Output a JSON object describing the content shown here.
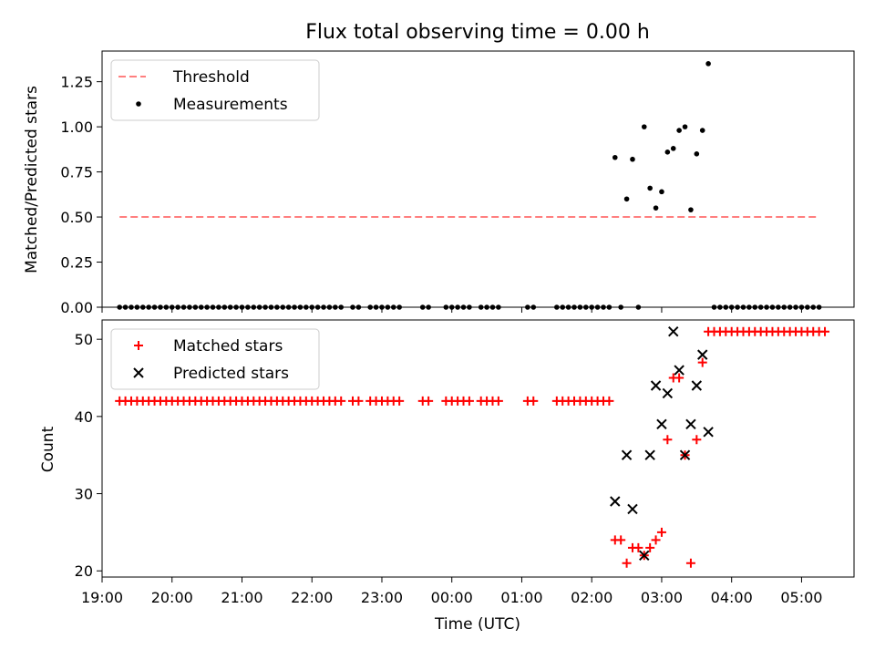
{
  "title": "Flux total observing time = 0.00 h",
  "colors": {
    "threshold": "#ff7f7f",
    "measurement": "#000000",
    "matched": "#ff0000",
    "predicted": "#000000"
  },
  "chart_data": [
    {
      "type": "scatter",
      "panel": "top",
      "ylabel": "Matched/Predicted stars",
      "ylim": [
        0,
        1.42
      ],
      "yticks": [
        0.0,
        0.25,
        0.5,
        0.75,
        1.0,
        1.25
      ],
      "ytick_labels": [
        "0.00",
        "0.25",
        "0.50",
        "0.75",
        "1.00",
        "1.25"
      ],
      "xlim": [
        "19:00",
        "05:45"
      ],
      "legend": {
        "placement": "top-left",
        "entries": [
          "Threshold",
          "Measurements"
        ]
      },
      "series": [
        {
          "name": "Threshold",
          "type": "line",
          "style": "dashed",
          "x": [
            "19:15",
            "05:15"
          ],
          "y": [
            0.5,
            0.5
          ]
        },
        {
          "name": "Measurements",
          "type": "scatter",
          "points": [
            [
              "19:15",
              0
            ],
            [
              "19:20",
              0
            ],
            [
              "19:25",
              0
            ],
            [
              "19:30",
              0
            ],
            [
              "19:35",
              0
            ],
            [
              "19:40",
              0
            ],
            [
              "19:45",
              0
            ],
            [
              "19:50",
              0
            ],
            [
              "19:55",
              0
            ],
            [
              "20:00",
              0
            ],
            [
              "20:05",
              0
            ],
            [
              "20:10",
              0
            ],
            [
              "20:15",
              0
            ],
            [
              "20:20",
              0
            ],
            [
              "20:25",
              0
            ],
            [
              "20:30",
              0
            ],
            [
              "20:35",
              0
            ],
            [
              "20:40",
              0
            ],
            [
              "20:45",
              0
            ],
            [
              "20:50",
              0
            ],
            [
              "20:55",
              0
            ],
            [
              "21:00",
              0
            ],
            [
              "21:05",
              0
            ],
            [
              "21:10",
              0
            ],
            [
              "21:15",
              0
            ],
            [
              "21:20",
              0
            ],
            [
              "21:25",
              0
            ],
            [
              "21:30",
              0
            ],
            [
              "21:35",
              0
            ],
            [
              "21:40",
              0
            ],
            [
              "21:45",
              0
            ],
            [
              "21:50",
              0
            ],
            [
              "21:55",
              0
            ],
            [
              "22:00",
              0
            ],
            [
              "22:05",
              0
            ],
            [
              "22:10",
              0
            ],
            [
              "22:15",
              0
            ],
            [
              "22:20",
              0
            ],
            [
              "22:25",
              0
            ],
            [
              "22:35",
              0
            ],
            [
              "22:40",
              0
            ],
            [
              "22:50",
              0
            ],
            [
              "22:55",
              0
            ],
            [
              "23:00",
              0
            ],
            [
              "23:05",
              0
            ],
            [
              "23:10",
              0
            ],
            [
              "23:15",
              0
            ],
            [
              "23:35",
              0
            ],
            [
              "23:40",
              0
            ],
            [
              "23:55",
              0
            ],
            [
              "00:00",
              0
            ],
            [
              "00:05",
              0
            ],
            [
              "00:10",
              0
            ],
            [
              "00:15",
              0
            ],
            [
              "00:25",
              0
            ],
            [
              "00:30",
              0
            ],
            [
              "00:35",
              0
            ],
            [
              "00:40",
              0
            ],
            [
              "01:05",
              0
            ],
            [
              "01:10",
              0
            ],
            [
              "01:30",
              0
            ],
            [
              "01:35",
              0
            ],
            [
              "01:40",
              0
            ],
            [
              "01:45",
              0
            ],
            [
              "01:50",
              0
            ],
            [
              "01:55",
              0
            ],
            [
              "02:00",
              0
            ],
            [
              "02:05",
              0
            ],
            [
              "02:10",
              0
            ],
            [
              "02:15",
              0
            ],
            [
              "02:25",
              0
            ],
            [
              "02:40",
              0
            ],
            [
              "02:20",
              0.83
            ],
            [
              "02:30",
              0.6
            ],
            [
              "02:35",
              0.82
            ],
            [
              "02:45",
              1.0
            ],
            [
              "02:50",
              0.66
            ],
            [
              "02:55",
              0.55
            ],
            [
              "03:00",
              0.64
            ],
            [
              "03:05",
              0.86
            ],
            [
              "03:10",
              0.88
            ],
            [
              "03:15",
              0.98
            ],
            [
              "03:20",
              1.0
            ],
            [
              "03:25",
              0.54
            ],
            [
              "03:30",
              0.85
            ],
            [
              "03:35",
              0.98
            ],
            [
              "03:40",
              1.35
            ],
            [
              "03:45",
              0
            ],
            [
              "03:50",
              0
            ],
            [
              "03:55",
              0
            ],
            [
              "04:00",
              0
            ],
            [
              "04:05",
              0
            ],
            [
              "04:10",
              0
            ],
            [
              "04:15",
              0
            ],
            [
              "04:20",
              0
            ],
            [
              "04:25",
              0
            ],
            [
              "04:30",
              0
            ],
            [
              "04:35",
              0
            ],
            [
              "04:40",
              0
            ],
            [
              "04:45",
              0
            ],
            [
              "04:50",
              0
            ],
            [
              "04:55",
              0
            ],
            [
              "05:00",
              0
            ],
            [
              "05:05",
              0
            ],
            [
              "05:10",
              0
            ],
            [
              "05:15",
              0
            ]
          ]
        }
      ]
    },
    {
      "type": "scatter",
      "panel": "bottom",
      "xlabel": "Time (UTC)",
      "ylabel": "Count",
      "ylim": [
        19.2,
        52.5
      ],
      "yticks": [
        20,
        30,
        40,
        50
      ],
      "ytick_labels": [
        "20",
        "30",
        "40",
        "50"
      ],
      "xlim": [
        "19:00",
        "05:45"
      ],
      "xticks": [
        "19:00",
        "20:00",
        "21:00",
        "22:00",
        "23:00",
        "00:00",
        "01:00",
        "02:00",
        "03:00",
        "04:00",
        "05:00"
      ],
      "legend": {
        "placement": "top-left",
        "entries": [
          "Matched stars",
          "Predicted stars"
        ]
      },
      "series": [
        {
          "name": "Matched stars",
          "marker": "+",
          "points": [
            [
              "19:15",
              42
            ],
            [
              "19:20",
              42
            ],
            [
              "19:25",
              42
            ],
            [
              "19:30",
              42
            ],
            [
              "19:35",
              42
            ],
            [
              "19:40",
              42
            ],
            [
              "19:45",
              42
            ],
            [
              "19:50",
              42
            ],
            [
              "19:55",
              42
            ],
            [
              "20:00",
              42
            ],
            [
              "20:05",
              42
            ],
            [
              "20:10",
              42
            ],
            [
              "20:15",
              42
            ],
            [
              "20:20",
              42
            ],
            [
              "20:25",
              42
            ],
            [
              "20:30",
              42
            ],
            [
              "20:35",
              42
            ],
            [
              "20:40",
              42
            ],
            [
              "20:45",
              42
            ],
            [
              "20:50",
              42
            ],
            [
              "20:55",
              42
            ],
            [
              "21:00",
              42
            ],
            [
              "21:05",
              42
            ],
            [
              "21:10",
              42
            ],
            [
              "21:15",
              42
            ],
            [
              "21:20",
              42
            ],
            [
              "21:25",
              42
            ],
            [
              "21:30",
              42
            ],
            [
              "21:35",
              42
            ],
            [
              "21:40",
              42
            ],
            [
              "21:45",
              42
            ],
            [
              "21:50",
              42
            ],
            [
              "21:55",
              42
            ],
            [
              "22:00",
              42
            ],
            [
              "22:05",
              42
            ],
            [
              "22:10",
              42
            ],
            [
              "22:15",
              42
            ],
            [
              "22:20",
              42
            ],
            [
              "22:25",
              42
            ],
            [
              "22:35",
              42
            ],
            [
              "22:40",
              42
            ],
            [
              "22:50",
              42
            ],
            [
              "22:55",
              42
            ],
            [
              "23:00",
              42
            ],
            [
              "23:05",
              42
            ],
            [
              "23:10",
              42
            ],
            [
              "23:15",
              42
            ],
            [
              "23:35",
              42
            ],
            [
              "23:40",
              42
            ],
            [
              "23:55",
              42
            ],
            [
              "00:00",
              42
            ],
            [
              "00:05",
              42
            ],
            [
              "00:10",
              42
            ],
            [
              "00:15",
              42
            ],
            [
              "00:25",
              42
            ],
            [
              "00:30",
              42
            ],
            [
              "00:35",
              42
            ],
            [
              "00:40",
              42
            ],
            [
              "01:05",
              42
            ],
            [
              "01:10",
              42
            ],
            [
              "01:30",
              42
            ],
            [
              "01:35",
              42
            ],
            [
              "01:40",
              42
            ],
            [
              "01:45",
              42
            ],
            [
              "01:50",
              42
            ],
            [
              "01:55",
              42
            ],
            [
              "02:00",
              42
            ],
            [
              "02:05",
              42
            ],
            [
              "02:10",
              42
            ],
            [
              "02:15",
              42
            ],
            [
              "02:20",
              24
            ],
            [
              "02:25",
              24
            ],
            [
              "02:30",
              21
            ],
            [
              "02:35",
              23
            ],
            [
              "02:40",
              23
            ],
            [
              "02:45",
              22
            ],
            [
              "02:50",
              23
            ],
            [
              "02:55",
              24
            ],
            [
              "03:00",
              25
            ],
            [
              "03:05",
              37
            ],
            [
              "03:10",
              45
            ],
            [
              "03:15",
              45
            ],
            [
              "03:20",
              35
            ],
            [
              "03:25",
              21
            ],
            [
              "03:30",
              37
            ],
            [
              "03:35",
              47
            ],
            [
              "03:40",
              51
            ],
            [
              "03:45",
              51
            ],
            [
              "03:50",
              51
            ],
            [
              "03:55",
              51
            ],
            [
              "04:00",
              51
            ],
            [
              "04:05",
              51
            ],
            [
              "04:10",
              51
            ],
            [
              "04:15",
              51
            ],
            [
              "04:20",
              51
            ],
            [
              "04:25",
              51
            ],
            [
              "04:30",
              51
            ],
            [
              "04:35",
              51
            ],
            [
              "04:40",
              51
            ],
            [
              "04:45",
              51
            ],
            [
              "04:50",
              51
            ],
            [
              "04:55",
              51
            ],
            [
              "05:00",
              51
            ],
            [
              "05:05",
              51
            ],
            [
              "05:10",
              51
            ],
            [
              "05:15",
              51
            ],
            [
              "05:20",
              51
            ]
          ]
        },
        {
          "name": "Predicted stars",
          "marker": "x",
          "points": [
            [
              "02:20",
              29
            ],
            [
              "02:30",
              35
            ],
            [
              "02:35",
              28
            ],
            [
              "02:45",
              22
            ],
            [
              "02:50",
              35
            ],
            [
              "02:55",
              44
            ],
            [
              "03:00",
              39
            ],
            [
              "03:05",
              43
            ],
            [
              "03:10",
              51
            ],
            [
              "03:15",
              46
            ],
            [
              "03:20",
              35
            ],
            [
              "03:25",
              39
            ],
            [
              "03:30",
              44
            ],
            [
              "03:35",
              48
            ],
            [
              "03:40",
              38
            ]
          ]
        }
      ]
    }
  ]
}
